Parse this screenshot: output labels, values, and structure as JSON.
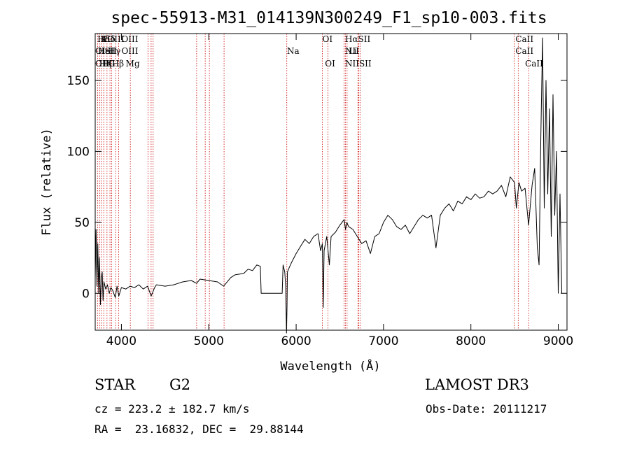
{
  "chart_data": {
    "type": "line",
    "title": "spec-55913-M31_014139N300249_F1_sp10-003.fits",
    "xlabel": "Wavelength (Å)",
    "ylabel": "Flux (relative)",
    "xlim": [
      3700,
      9100
    ],
    "ylim": [
      -26,
      183
    ],
    "xticks": [
      4000,
      5000,
      6000,
      7000,
      8000,
      9000
    ],
    "yticks": [
      0,
      50,
      100,
      150
    ],
    "grid": false,
    "series_color": "#000000",
    "line_marker_color": "#cc0000",
    "series": [
      {
        "points": [
          [
            3700,
            10
          ],
          [
            3710,
            45
          ],
          [
            3720,
            5
          ],
          [
            3730,
            35
          ],
          [
            3740,
            0
          ],
          [
            3750,
            25
          ],
          [
            3760,
            -8
          ],
          [
            3770,
            10
          ],
          [
            3780,
            15
          ],
          [
            3790,
            -5
          ],
          [
            3800,
            8
          ],
          [
            3820,
            3
          ],
          [
            3840,
            6
          ],
          [
            3860,
            0
          ],
          [
            3880,
            4
          ],
          [
            3900,
            2
          ],
          [
            3930,
            -3
          ],
          [
            3950,
            5
          ],
          [
            3970,
            -2
          ],
          [
            4000,
            4
          ],
          [
            4050,
            3
          ],
          [
            4100,
            5
          ],
          [
            4150,
            4
          ],
          [
            4200,
            6
          ],
          [
            4250,
            3
          ],
          [
            4300,
            5
          ],
          [
            4340,
            -2
          ],
          [
            4380,
            4
          ],
          [
            4400,
            6
          ],
          [
            4500,
            5
          ],
          [
            4600,
            6
          ],
          [
            4700,
            8
          ],
          [
            4800,
            9
          ],
          [
            4860,
            7
          ],
          [
            4900,
            10
          ],
          [
            5000,
            9
          ],
          [
            5100,
            8
          ],
          [
            5170,
            5
          ],
          [
            5250,
            11
          ],
          [
            5300,
            13
          ],
          [
            5400,
            14
          ],
          [
            5450,
            17
          ],
          [
            5500,
            16
          ],
          [
            5550,
            20
          ],
          [
            5590,
            19
          ],
          [
            5600,
            0
          ],
          [
            5700,
            0
          ],
          [
            5800,
            0
          ],
          [
            5840,
            0
          ],
          [
            5850,
            20
          ],
          [
            5870,
            15
          ],
          [
            5880,
            5
          ],
          [
            5890,
            -28
          ],
          [
            5895,
            -10
          ],
          [
            5900,
            15
          ],
          [
            5920,
            18
          ],
          [
            5950,
            22
          ],
          [
            6000,
            28
          ],
          [
            6050,
            33
          ],
          [
            6100,
            38
          ],
          [
            6150,
            35
          ],
          [
            6200,
            40
          ],
          [
            6250,
            42
          ],
          [
            6280,
            30
          ],
          [
            6300,
            35
          ],
          [
            6310,
            -10
          ],
          [
            6320,
            30
          ],
          [
            6350,
            40
          ],
          [
            6380,
            20
          ],
          [
            6400,
            40
          ],
          [
            6450,
            43
          ],
          [
            6500,
            48
          ],
          [
            6550,
            52
          ],
          [
            6565,
            45
          ],
          [
            6580,
            50
          ],
          [
            6600,
            47
          ],
          [
            6650,
            45
          ],
          [
            6700,
            40
          ],
          [
            6750,
            35
          ],
          [
            6800,
            37
          ],
          [
            6850,
            28
          ],
          [
            6900,
            40
          ],
          [
            6950,
            42
          ],
          [
            7000,
            50
          ],
          [
            7050,
            55
          ],
          [
            7100,
            52
          ],
          [
            7150,
            47
          ],
          [
            7200,
            45
          ],
          [
            7250,
            48
          ],
          [
            7300,
            42
          ],
          [
            7350,
            47
          ],
          [
            7400,
            52
          ],
          [
            7450,
            55
          ],
          [
            7500,
            53
          ],
          [
            7550,
            55
          ],
          [
            7600,
            32
          ],
          [
            7650,
            55
          ],
          [
            7700,
            60
          ],
          [
            7750,
            63
          ],
          [
            7800,
            58
          ],
          [
            7850,
            65
          ],
          [
            7900,
            63
          ],
          [
            7950,
            68
          ],
          [
            8000,
            66
          ],
          [
            8050,
            70
          ],
          [
            8100,
            67
          ],
          [
            8150,
            68
          ],
          [
            8200,
            72
          ],
          [
            8250,
            70
          ],
          [
            8300,
            72
          ],
          [
            8350,
            76
          ],
          [
            8400,
            68
          ],
          [
            8450,
            82
          ],
          [
            8500,
            78
          ],
          [
            8520,
            60
          ],
          [
            8550,
            78
          ],
          [
            8580,
            72
          ],
          [
            8620,
            74
          ],
          [
            8660,
            48
          ],
          [
            8700,
            76
          ],
          [
            8730,
            88
          ],
          [
            8760,
            32
          ],
          [
            8780,
            20
          ],
          [
            8800,
            110
          ],
          [
            8820,
            180
          ],
          [
            8840,
            60
          ],
          [
            8860,
            150
          ],
          [
            8880,
            70
          ],
          [
            8900,
            130
          ],
          [
            8920,
            40
          ],
          [
            8940,
            140
          ],
          [
            8960,
            55
          ],
          [
            8980,
            100
          ],
          [
            9000,
            0
          ],
          [
            9020,
            70
          ],
          [
            9040,
            0
          ]
        ]
      }
    ],
    "lines_top": [
      {
        "label": "Hδ",
        "x": 3725,
        "row": 0
      },
      {
        "label": "K",
        "x": 3760,
        "row": 0
      },
      {
        "label": "Hδ",
        "x": 3790,
        "row": 0
      },
      {
        "label": "OIII",
        "x": 3840,
        "row": 0
      },
      {
        "label": "OIII",
        "x": 4000,
        "row": 0
      },
      {
        "label": "OI",
        "x": 6300,
        "row": 0
      },
      {
        "label": "HαSII",
        "x": 6560,
        "row": 0
      },
      {
        "label": "CaII",
        "x": 8510,
        "row": 0
      },
      {
        "label": "OI",
        "x": 3700,
        "row": 1
      },
      {
        "label": "HeI",
        "x": 3730,
        "row": 1
      },
      {
        "label": "ISII",
        "x": 3770,
        "row": 1
      },
      {
        "label": "Hγ",
        "x": 3850,
        "row": 1
      },
      {
        "label": "OIII",
        "x": 4000,
        "row": 1
      },
      {
        "label": "Na",
        "x": 5895,
        "row": 1
      },
      {
        "label": "NII",
        "x": 6560,
        "row": 1
      },
      {
        "label": "Li",
        "x": 6600,
        "row": 1
      },
      {
        "label": "CaII",
        "x": 8510,
        "row": 1
      },
      {
        "label": "OIII",
        "x": 3700,
        "row": 2
      },
      {
        "label": "Hη",
        "x": 3745,
        "row": 2
      },
      {
        "label": "H",
        "x": 3780,
        "row": 2
      },
      {
        "label": "G",
        "x": 3850,
        "row": 2
      },
      {
        "label": "Hβ",
        "x": 3890,
        "row": 2
      },
      {
        "label": "Mg",
        "x": 4050,
        "row": 2
      },
      {
        "label": "OI",
        "x": 6330,
        "row": 2
      },
      {
        "label": "NIISII",
        "x": 6560,
        "row": 2
      },
      {
        "label": "CaII",
        "x": 8620,
        "row": 2
      }
    ],
    "marker_lines": [
      3727,
      3750,
      3770,
      3798,
      3835,
      3869,
      3889,
      3934,
      3969,
      4102,
      4304,
      4340,
      4363,
      4861,
      4959,
      5007,
      5175,
      5893,
      6300,
      6364,
      6548,
      6563,
      6583,
      6707,
      6716,
      6731,
      8498,
      8542,
      8662
    ]
  },
  "info": {
    "class": "STAR",
    "subclass": "G2",
    "survey": "LAMOST DR3",
    "cz": "cz = 223.2 ± 182.7 km/s",
    "obsdate": "Obs-Date: 20111217",
    "radec": "RA =  23.16832, DEC =  29.88144"
  }
}
